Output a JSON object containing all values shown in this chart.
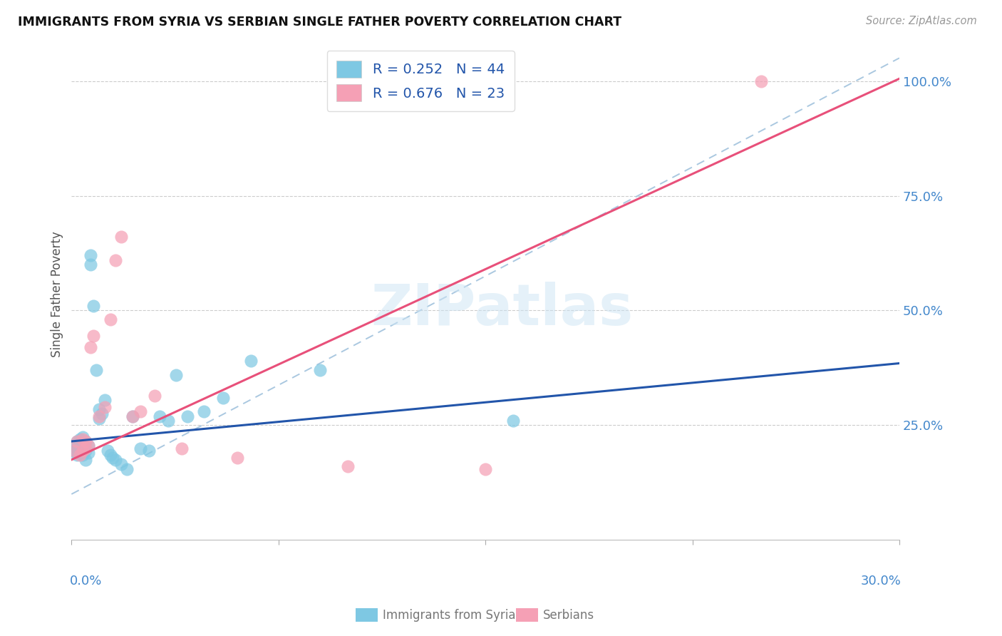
{
  "title": "IMMIGRANTS FROM SYRIA VS SERBIAN SINGLE FATHER POVERTY CORRELATION CHART",
  "source": "Source: ZipAtlas.com",
  "ylabel": "Single Father Poverty",
  "right_yticks": [
    "100.0%",
    "75.0%",
    "50.0%",
    "25.0%"
  ],
  "right_ytick_vals": [
    1.0,
    0.75,
    0.5,
    0.25
  ],
  "xmin": 0.0,
  "xmax": 0.3,
  "ymin": 0.0,
  "ymax": 1.07,
  "color_blue": "#7ec8e3",
  "color_pink": "#f5a0b5",
  "line_blue": "#2255aa",
  "line_pink": "#e8507a",
  "line_dash_color": "#aac8e0",
  "watermark_text": "ZIPatlas",
  "syria_x": [
    0.001,
    0.001,
    0.002,
    0.002,
    0.002,
    0.003,
    0.003,
    0.003,
    0.003,
    0.004,
    0.004,
    0.004,
    0.005,
    0.005,
    0.005,
    0.005,
    0.006,
    0.006,
    0.007,
    0.007,
    0.008,
    0.009,
    0.01,
    0.01,
    0.011,
    0.012,
    0.013,
    0.014,
    0.015,
    0.016,
    0.018,
    0.02,
    0.022,
    0.025,
    0.028,
    0.032,
    0.035,
    0.038,
    0.042,
    0.048,
    0.055,
    0.065,
    0.09,
    0.16
  ],
  "syria_y": [
    0.195,
    0.205,
    0.185,
    0.2,
    0.215,
    0.19,
    0.2,
    0.21,
    0.22,
    0.185,
    0.195,
    0.225,
    0.175,
    0.195,
    0.2,
    0.215,
    0.19,
    0.205,
    0.6,
    0.62,
    0.51,
    0.37,
    0.265,
    0.285,
    0.275,
    0.305,
    0.195,
    0.185,
    0.18,
    0.175,
    0.165,
    0.155,
    0.27,
    0.2,
    0.195,
    0.27,
    0.26,
    0.36,
    0.27,
    0.28,
    0.31,
    0.39,
    0.37,
    0.26
  ],
  "serbian_x": [
    0.001,
    0.002,
    0.003,
    0.004,
    0.004,
    0.005,
    0.005,
    0.006,
    0.007,
    0.008,
    0.01,
    0.012,
    0.014,
    0.016,
    0.018,
    0.022,
    0.025,
    0.03,
    0.04,
    0.06,
    0.1,
    0.15,
    0.25
  ],
  "serbian_y": [
    0.195,
    0.215,
    0.185,
    0.22,
    0.195,
    0.2,
    0.215,
    0.205,
    0.42,
    0.445,
    0.27,
    0.29,
    0.48,
    0.61,
    0.66,
    0.27,
    0.28,
    0.315,
    0.2,
    0.18,
    0.16,
    0.155,
    1.0
  ],
  "blue_line_x0": 0.0,
  "blue_line_y0": 0.215,
  "blue_line_x1": 0.3,
  "blue_line_y1": 0.385,
  "pink_line_x0": 0.0,
  "pink_line_y0": 0.175,
  "pink_line_x1": 0.3,
  "pink_line_y1": 1.005,
  "dash_line_x0": 0.0,
  "dash_line_y0": 0.1,
  "dash_line_x1": 0.3,
  "dash_line_y1": 1.05
}
